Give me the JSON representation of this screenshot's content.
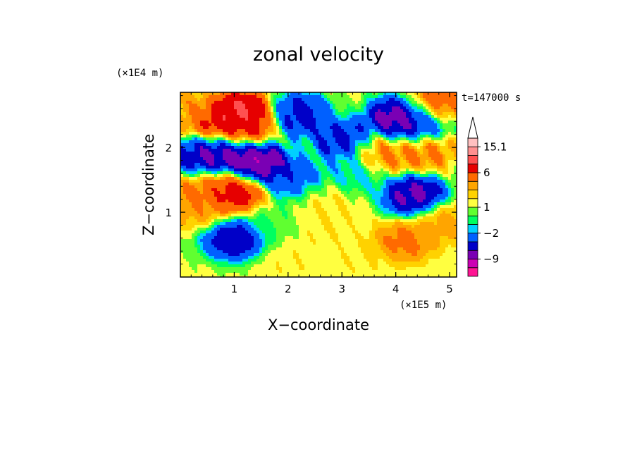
{
  "chart_data": {
    "type": "heatmap",
    "title": "zonal velocity",
    "xlabel": "X−coordinate",
    "ylabel": "Z−coordinate",
    "x_scale_label": "(×1E5 m)",
    "y_scale_label": "(×1E4 m)",
    "time_label": "t=147000 s",
    "xlim": [
      0,
      5.13
    ],
    "ylim": [
      0,
      2.85
    ],
    "x_ticks": [
      1,
      2,
      3,
      4,
      5
    ],
    "x_tick_labels": [
      "1",
      "2",
      "3",
      "4",
      "5"
    ],
    "y_ticks": [
      1,
      2
    ],
    "y_tick_labels": [
      "1",
      "2"
    ],
    "colorbar": {
      "levels": [
        -15,
        -12,
        -9,
        -6,
        -4,
        -2,
        -1,
        0,
        1,
        2,
        3,
        4,
        6,
        9,
        12,
        15.1
      ],
      "colors": [
        "#ff1493",
        "#cc00b4",
        "#7a00b4",
        "#0000c8",
        "#0060ff",
        "#00d0ff",
        "#00ff60",
        "#60ff30",
        "#ffff40",
        "#ffd200",
        "#ffa500",
        "#ff6a00",
        "#e60000",
        "#ff5050",
        "#ff9090",
        "#ffc0c0"
      ],
      "labels": [
        {
          "value": 15.1,
          "text": "15.1"
        },
        {
          "value": 6,
          "text": "6"
        },
        {
          "value": 1,
          "text": "1"
        },
        {
          "value": -2,
          "text": "−2"
        },
        {
          "value": -9,
          "text": "−9"
        }
      ],
      "extend_max": true
    },
    "features": [
      {
        "x": 0.75,
        "z": 2.3,
        "value": 9
      },
      {
        "x": 1.1,
        "z": 2.5,
        "value": 12
      },
      {
        "x": 1.25,
        "z": 2.35,
        "value": 6
      },
      {
        "x": 0.75,
        "z": 1.95,
        "value": -9
      },
      {
        "x": 0.35,
        "z": 1.85,
        "value": -6
      },
      {
        "x": 1.45,
        "z": 1.75,
        "value": -10
      },
      {
        "x": 1.0,
        "z": 1.3,
        "value": 9
      },
      {
        "x": 0.45,
        "z": 1.35,
        "value": 5
      },
      {
        "x": 0.4,
        "z": 1.05,
        "value": 4
      },
      {
        "x": 1.0,
        "z": 0.6,
        "value": -7
      },
      {
        "x": 2.2,
        "z": 2.5,
        "value": -6
      },
      {
        "x": 2.1,
        "z": 1.5,
        "value": -4
      },
      {
        "x": 2.7,
        "z": 1.15,
        "value": 2
      },
      {
        "x": 3.05,
        "z": 2.1,
        "value": -6
      },
      {
        "x": 3.25,
        "z": 1.6,
        "value": -2
      },
      {
        "x": 4.05,
        "z": 2.45,
        "value": -9
      },
      {
        "x": 4.4,
        "z": 2.35,
        "value": -6
      },
      {
        "x": 4.7,
        "z": 2.65,
        "value": 6
      },
      {
        "x": 4.5,
        "z": 1.95,
        "value": 5
      },
      {
        "x": 3.7,
        "z": 1.9,
        "value": 5
      },
      {
        "x": 4.35,
        "z": 1.25,
        "value": -8
      },
      {
        "x": 4.15,
        "z": 0.55,
        "value": 5
      },
      {
        "x": 2.7,
        "z": 0.75,
        "value": 2
      },
      {
        "x": 2.05,
        "z": 0.2,
        "value": 2
      },
      {
        "x": 3.3,
        "z": 0.25,
        "value": 2
      },
      {
        "x": 4.85,
        "z": 0.85,
        "value": 4
      },
      {
        "x": 1.7,
        "z": 0.85,
        "value": 0
      },
      {
        "x": 0.2,
        "z": 2.55,
        "value": 4
      }
    ]
  }
}
